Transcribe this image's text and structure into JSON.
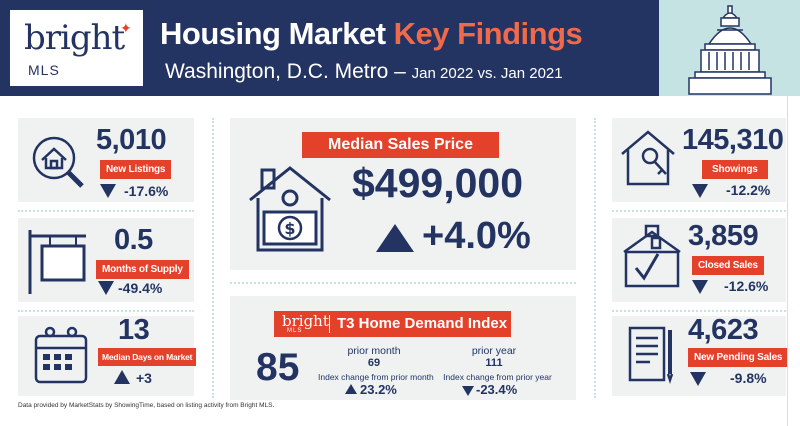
{
  "header": {
    "logo_word": "bright",
    "logo_sub": "MLS",
    "title_main": "Housing Market ",
    "title_accent": "Key Findings",
    "subtitle_main": "Washington, D.C. Metro – ",
    "subtitle_date": "Jan 2022 vs. Jan 2021"
  },
  "left_stats": [
    {
      "value": "5,010",
      "label": "New Listings",
      "change": "-17.6%",
      "direction": "down",
      "icon": "house-magnifier-icon"
    },
    {
      "value": "0.5",
      "label": "Months of Supply",
      "change": "-49.4%",
      "direction": "down",
      "icon": "sign-post-icon"
    },
    {
      "value": "13",
      "label": "Median Days on Market",
      "change": "+3",
      "direction": "up",
      "icon": "calendar-icon"
    }
  ],
  "median_price": {
    "label": "Median Sales Price",
    "value": "$499,000",
    "change": "+4.0%",
    "direction": "up",
    "icon": "house-money-icon"
  },
  "t3": {
    "brand_word": "bright",
    "brand_sub": "MLS",
    "title": "T3 Home Demand Index",
    "value": "85",
    "prior_month_label": "prior month",
    "prior_month_value": "69",
    "prior_month_change_label": "Index change from prior month",
    "prior_month_change": "23.2%",
    "prior_year_label": "prior year",
    "prior_year_value": "111",
    "prior_year_change_label": "Index change from prior year",
    "prior_year_change": "-23.4%"
  },
  "right_stats": [
    {
      "value": "145,310",
      "label": "Showings",
      "change": "-12.2%",
      "direction": "down",
      "icon": "house-key-icon"
    },
    {
      "value": "3,859",
      "label": "Closed Sales",
      "change": "-12.6%",
      "direction": "down",
      "icon": "house-check-icon"
    },
    {
      "value": "4,623",
      "label": "New Pending Sales",
      "change": "-9.8%",
      "direction": "down",
      "icon": "document-pen-icon"
    }
  ],
  "footnote": "Data provided by MarketStats by ShowingTime, based on listing activity from Bright MLS.",
  "colors": {
    "navy": "#233462",
    "red": "#e4412b",
    "mint": "#c4e3e2",
    "panel": "#f0f2f2"
  }
}
